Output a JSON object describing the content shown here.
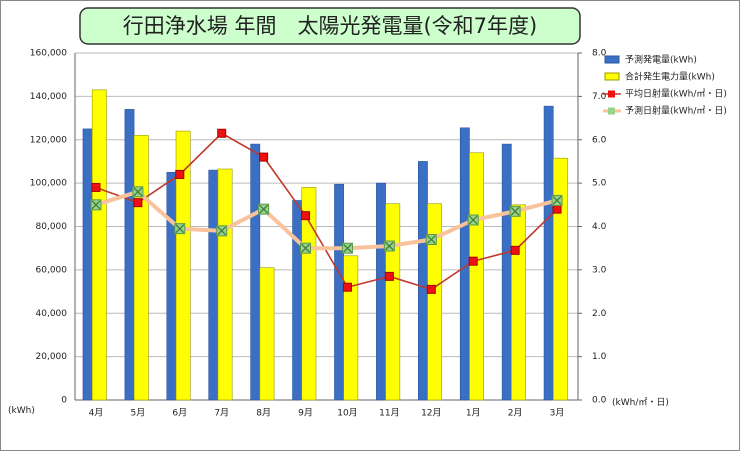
{
  "chart_data": {
    "type": "bar_line",
    "title": "行田浄水場 年間　太陽光発電量(令和7年度)",
    "y_label": "(kWh)",
    "y2_label": "(kWh/㎡・日)",
    "categories": [
      "4月",
      "5月",
      "6月",
      "7月",
      "8月",
      "9月",
      "10月",
      "11月",
      "12月",
      "1月",
      "2月",
      "3月"
    ],
    "series": [
      {
        "name": "予測発電量(kWh)",
        "color": "#3a6fc4",
        "kind": "bar",
        "values": [
          125000,
          134000,
          105000,
          106000,
          118000,
          92000,
          99500,
          100000,
          110000,
          125500,
          118000,
          135500
        ]
      },
      {
        "name": "合計発生電力量(kWh)",
        "color": "#ffff00",
        "kind": "bar",
        "values": [
          143000,
          122000,
          124000,
          106500,
          61000,
          98000,
          66500,
          90500,
          90500,
          114000,
          90000,
          111500
        ]
      },
      {
        "name": "平均日射量(kWh/㎡・日)",
        "color": "#c0392b",
        "kind": "line",
        "axis": "y2",
        "values": [
          4.9,
          4.55,
          5.2,
          6.15,
          5.6,
          4.25,
          2.6,
          2.85,
          2.55,
          3.2,
          3.45,
          4.4
        ]
      },
      {
        "name": "予測日射量(kWh/㎡・日)",
        "color": "#f8c39a",
        "kind": "line",
        "axis": "y2",
        "values": [
          4.5,
          4.8,
          3.95,
          3.9,
          4.4,
          3.5,
          3.5,
          3.55,
          3.7,
          4.15,
          4.35,
          4.6
        ]
      }
    ],
    "ylim": [
      0,
      160000
    ],
    "yticks": [
      0,
      {
        "value": 20000,
        "label": "20,000"
      },
      {
        "value": 40000,
        "label": "40,000"
      },
      {
        "value": 60000,
        "label": "60,000"
      },
      {
        "value": 80000,
        "label": "80,000"
      },
      {
        "value": 100000,
        "label": "100,000"
      },
      {
        "value": 120000,
        "label": "120,000"
      },
      {
        "value": 140000,
        "label": "140,000"
      },
      {
        "value": 160000,
        "label": "160,000"
      }
    ],
    "y2lim": [
      0,
      8
    ],
    "y2ticks": [
      {
        "value": 0,
        "label": "0.0"
      },
      {
        "value": 1,
        "label": "1.0"
      },
      {
        "value": 2,
        "label": "2.0"
      },
      {
        "value": 3,
        "label": "3.0"
      },
      {
        "value": 4,
        "label": "4.0"
      },
      {
        "value": 5,
        "label": "5.0"
      },
      {
        "value": 6,
        "label": "6.0"
      },
      {
        "value": 7,
        "label": "7.0"
      },
      {
        "value": 8,
        "label": "8.0"
      }
    ],
    "grid": true
  }
}
